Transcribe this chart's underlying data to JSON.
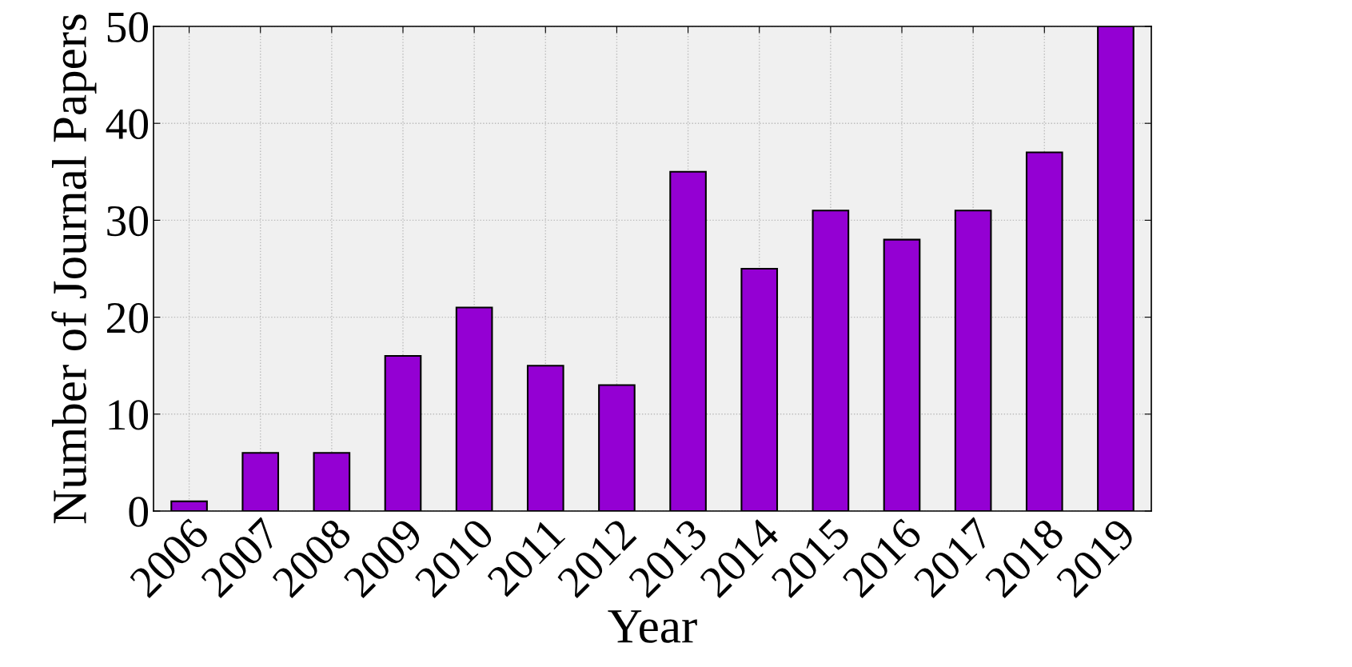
{
  "chart_data": {
    "type": "bar",
    "xlabel": "Year",
    "ylabel": "Number of Journal Papers",
    "categories": [
      "2006",
      "2007",
      "2008",
      "2009",
      "2010",
      "2011",
      "2012",
      "2013",
      "2014",
      "2015",
      "2016",
      "2017",
      "2018",
      "2019"
    ],
    "values": [
      1,
      6,
      6,
      16,
      21,
      15,
      13,
      35,
      25,
      31,
      28,
      31,
      37,
      50
    ],
    "color": "#9400d3",
    "ylim": [
      0,
      50
    ],
    "yticks": [
      0,
      10,
      20,
      30,
      40,
      50
    ],
    "grid": true
  }
}
